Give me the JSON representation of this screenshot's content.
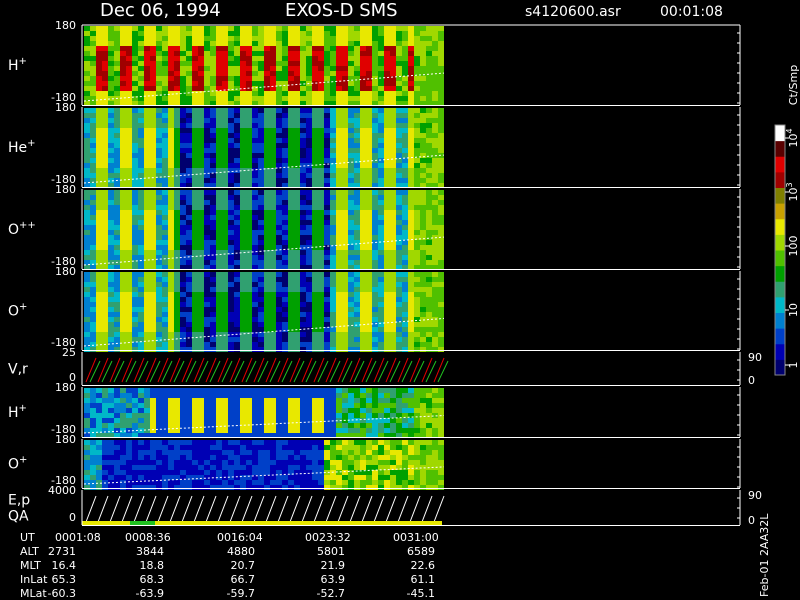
{
  "header": {
    "title": "Dec 06, 1994",
    "instrument": "EXOS-D SMS",
    "file": "s4120600.asr",
    "time": "00:01:08"
  },
  "panels": [
    {
      "name": "H",
      "sup": "+",
      "ticks": [
        180,
        -180
      ]
    },
    {
      "name": "He",
      "sup": "+",
      "ticks": [
        180,
        -180
      ]
    },
    {
      "name": "O",
      "sup": "++",
      "ticks": [
        180,
        -180
      ]
    },
    {
      "name": "O",
      "sup": "+",
      "ticks": [
        180,
        -180
      ]
    },
    {
      "name": "V,r",
      "ticks": [
        25,
        0
      ],
      "right_ticks": [
        90,
        0
      ]
    },
    {
      "name": "H",
      "sup": "+",
      "ticks": [
        180,
        -180
      ]
    },
    {
      "name": "O",
      "sup": "+",
      "ticks": [
        180,
        -180
      ]
    },
    {
      "name": "E,p",
      "name2": "QA",
      "ticks": [
        4000,
        0
      ],
      "right_ticks": [
        90,
        0
      ]
    }
  ],
  "colorbar": {
    "unit": "Ct/Smp",
    "ticks": [
      {
        "base": "10",
        "exp": "4"
      },
      {
        "base": "10",
        "exp": "3"
      },
      "100",
      "10",
      "1"
    ]
  },
  "ephemeris": {
    "rows": [
      [
        "UT",
        "0001:08",
        "0008:36",
        "0016:04",
        "0023:32",
        "0031:00"
      ],
      [
        "ALT",
        "2731",
        "3844",
        "4880",
        "5801",
        "6589"
      ],
      [
        "MLT",
        "16.4",
        "18.8",
        "20.7",
        "21.9",
        "22.6"
      ],
      [
        "InLat",
        "65.3",
        "68.3",
        "66.7",
        "63.9",
        "61.1"
      ],
      [
        "MLat",
        "-60.3",
        "-63.9",
        "-59.7",
        "-52.7",
        "-45.1"
      ]
    ]
  },
  "footer": "Feb-01 2AA32L"
}
